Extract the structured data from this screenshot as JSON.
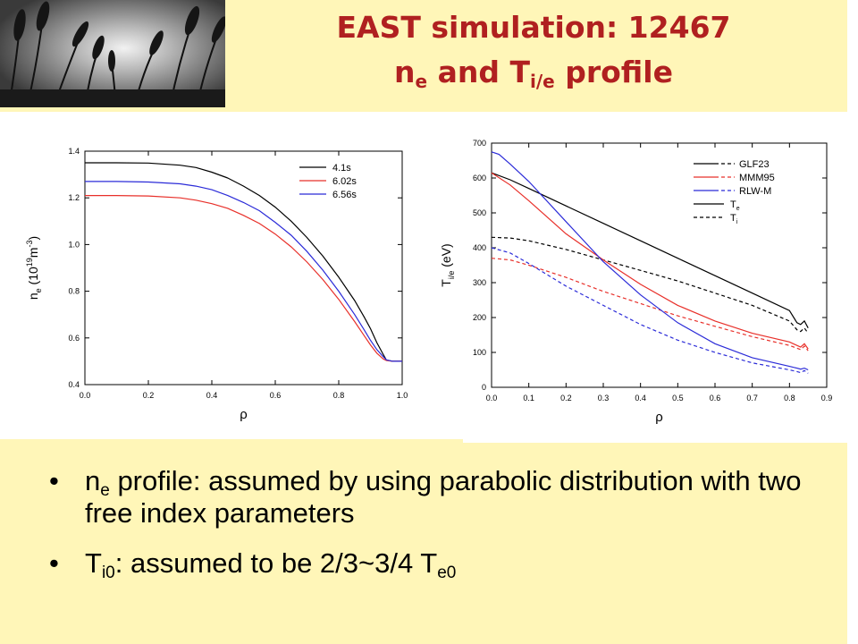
{
  "slide": {
    "title_line1": "EAST simulation: 12467",
    "title_l2_a": "n",
    "title_l2_sub1": "e",
    "title_l2_b": " and T",
    "title_l2_sub2": "i/e",
    "title_l2_c": " profile",
    "bullets": [
      {
        "dot": "•",
        "p1": "n",
        "sub1": "e",
        "p2": " profile: assumed by using parabolic distribution with two free index parameters"
      },
      {
        "dot": "•",
        "p1": "T",
        "sub1": "i0",
        "p2": ": assumed to be 2/3~3/4 T",
        "sub2": "e0"
      }
    ]
  },
  "colors": {
    "background": "#fff6b8",
    "title": "#b02020",
    "black_series": "#000000",
    "red_series": "#e8302a",
    "blue_series": "#2b2bd8"
  },
  "chart_data": [
    {
      "type": "line",
      "xlabel": "ρ",
      "ylabel_parts": {
        "a": "n",
        "sub": "e",
        "b": " (10",
        "sup1": "19",
        "c": "m",
        "sup2": "-3",
        "d": ")"
      },
      "xlim": [
        0.0,
        1.0
      ],
      "ylim": [
        0.4,
        1.4
      ],
      "xticks": [
        "0.0",
        "0.2",
        "0.4",
        "0.6",
        "0.8",
        "1.0"
      ],
      "yticks": [
        "0.4",
        "0.6",
        "0.8",
        "1.0",
        "1.2",
        "1.4"
      ],
      "legend_position": "top-right",
      "series": [
        {
          "name": "4.1s",
          "color": "#000000",
          "x": [
            0.0,
            0.1,
            0.2,
            0.3,
            0.35,
            0.4,
            0.45,
            0.5,
            0.55,
            0.6,
            0.65,
            0.7,
            0.75,
            0.8,
            0.85,
            0.88,
            0.9,
            0.92,
            0.94,
            0.95,
            0.97,
            1.0
          ],
          "y": [
            1.35,
            1.35,
            1.349,
            1.34,
            1.33,
            1.31,
            1.285,
            1.25,
            1.21,
            1.16,
            1.1,
            1.03,
            0.95,
            0.86,
            0.76,
            0.69,
            0.64,
            0.58,
            0.53,
            0.505,
            0.5,
            0.5
          ]
        },
        {
          "name": "6.02s",
          "color": "#e8302a",
          "x": [
            0.0,
            0.1,
            0.2,
            0.3,
            0.35,
            0.4,
            0.45,
            0.5,
            0.55,
            0.6,
            0.65,
            0.7,
            0.75,
            0.8,
            0.85,
            0.88,
            0.9,
            0.92,
            0.94,
            0.95,
            0.97,
            1.0
          ],
          "y": [
            1.21,
            1.21,
            1.208,
            1.2,
            1.19,
            1.175,
            1.155,
            1.125,
            1.09,
            1.045,
            0.99,
            0.925,
            0.85,
            0.765,
            0.67,
            0.61,
            0.57,
            0.535,
            0.51,
            0.503,
            0.5,
            0.5
          ]
        },
        {
          "name": "6.56s",
          "color": "#2b2bd8",
          "x": [
            0.0,
            0.1,
            0.2,
            0.3,
            0.35,
            0.4,
            0.45,
            0.5,
            0.55,
            0.6,
            0.65,
            0.7,
            0.75,
            0.8,
            0.85,
            0.88,
            0.9,
            0.92,
            0.94,
            0.95,
            0.97,
            1.0
          ],
          "y": [
            1.27,
            1.27,
            1.268,
            1.26,
            1.25,
            1.235,
            1.21,
            1.18,
            1.145,
            1.095,
            1.04,
            0.97,
            0.89,
            0.8,
            0.7,
            0.635,
            0.59,
            0.55,
            0.52,
            0.506,
            0.5,
            0.5
          ]
        }
      ]
    },
    {
      "type": "line",
      "xlabel": "ρ",
      "ylabel_parts": {
        "a": "T",
        "sub": "i/e",
        "b": " (eV)"
      },
      "xlim": [
        0.0,
        0.9
      ],
      "ylim": [
        0,
        700
      ],
      "xticks": [
        "0.0",
        "0.1",
        "0.2",
        "0.3",
        "0.4",
        "0.5",
        "0.6",
        "0.7",
        "0.8",
        "0.9"
      ],
      "yticks": [
        "0",
        "100",
        "200",
        "300",
        "400",
        "500",
        "600",
        "700"
      ],
      "legend_position": "top-right",
      "legend": [
        {
          "name": "GLF23",
          "color": "#000000",
          "pair": true
        },
        {
          "name": "MMM95",
          "color": "#e8302a",
          "pair": true
        },
        {
          "name": "RLW-M",
          "color": "#2b2bd8",
          "pair": true
        },
        {
          "name": "T",
          "sub": "e",
          "color": "#000000",
          "dash": false
        },
        {
          "name": "T",
          "sub": "i",
          "color": "#000000",
          "dash": true
        }
      ],
      "series": [
        {
          "model": "GLF23",
          "quantity": "Te",
          "color": "#000000",
          "dash": false,
          "x": [
            0.0,
            0.05,
            0.1,
            0.2,
            0.3,
            0.4,
            0.5,
            0.6,
            0.7,
            0.8,
            0.82,
            0.83,
            0.84,
            0.85
          ],
          "y": [
            615,
            595,
            570,
            520,
            470,
            420,
            370,
            320,
            270,
            220,
            185,
            180,
            190,
            170
          ]
        },
        {
          "model": "GLF23",
          "quantity": "Ti",
          "color": "#000000",
          "dash": true,
          "x": [
            0.0,
            0.05,
            0.1,
            0.2,
            0.3,
            0.4,
            0.5,
            0.6,
            0.7,
            0.8,
            0.82,
            0.83,
            0.84,
            0.85
          ],
          "y": [
            430,
            428,
            420,
            395,
            365,
            335,
            305,
            270,
            235,
            190,
            165,
            160,
            170,
            155
          ]
        },
        {
          "model": "MMM95",
          "quantity": "Te",
          "color": "#e8302a",
          "dash": false,
          "x": [
            0.0,
            0.05,
            0.1,
            0.2,
            0.3,
            0.4,
            0.5,
            0.6,
            0.7,
            0.8,
            0.82,
            0.83,
            0.84,
            0.85
          ],
          "y": [
            615,
            580,
            535,
            440,
            365,
            295,
            235,
            190,
            155,
            130,
            120,
            115,
            125,
            110
          ]
        },
        {
          "model": "MMM95",
          "quantity": "Ti",
          "color": "#e8302a",
          "dash": true,
          "x": [
            0.0,
            0.05,
            0.1,
            0.2,
            0.3,
            0.4,
            0.5,
            0.6,
            0.7,
            0.8,
            0.82,
            0.83,
            0.84,
            0.85
          ],
          "y": [
            370,
            365,
            350,
            315,
            275,
            240,
            205,
            175,
            145,
            120,
            112,
            108,
            118,
            105
          ]
        },
        {
          "model": "RLW-M",
          "quantity": "Te",
          "color": "#2b2bd8",
          "dash": false,
          "x": [
            0.0,
            0.02,
            0.05,
            0.1,
            0.2,
            0.3,
            0.4,
            0.5,
            0.6,
            0.7,
            0.8,
            0.82,
            0.83,
            0.84,
            0.85
          ],
          "y": [
            675,
            668,
            640,
            590,
            475,
            360,
            265,
            185,
            125,
            85,
            60,
            55,
            52,
            55,
            50
          ]
        },
        {
          "model": "RLW-M",
          "quantity": "Ti",
          "color": "#2b2bd8",
          "dash": true,
          "x": [
            0.0,
            0.05,
            0.1,
            0.2,
            0.3,
            0.4,
            0.5,
            0.6,
            0.7,
            0.8,
            0.82,
            0.83,
            0.84,
            0.85
          ],
          "y": [
            400,
            385,
            355,
            290,
            235,
            180,
            135,
            100,
            70,
            50,
            45,
            42,
            48,
            40
          ]
        }
      ]
    }
  ]
}
